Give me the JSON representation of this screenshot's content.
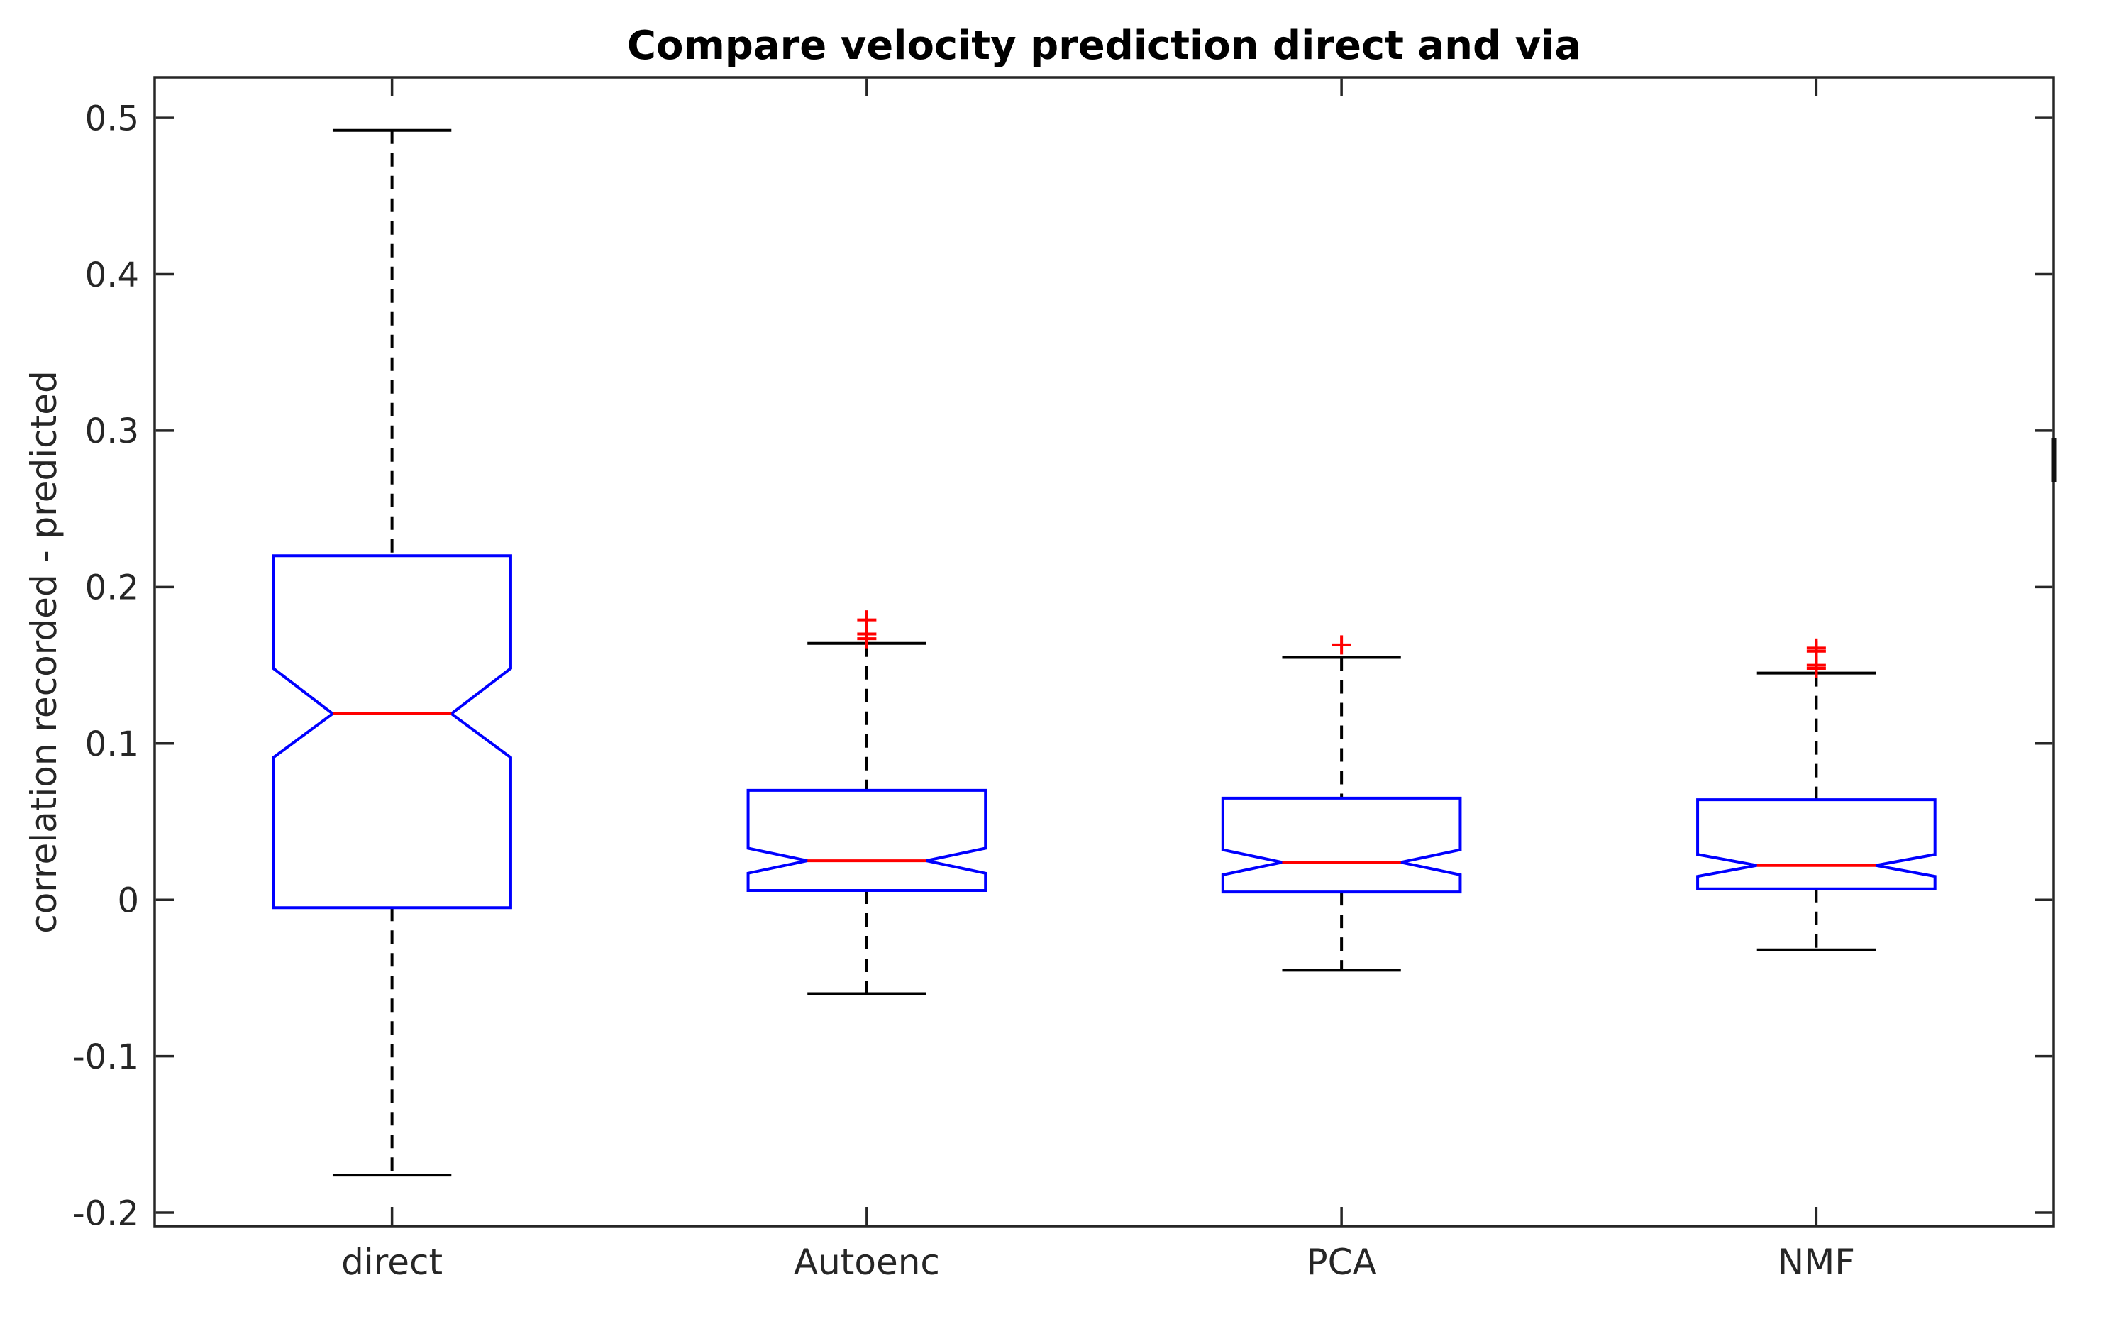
{
  "chart_data": {
    "type": "boxplot",
    "title": "Compare velocity prediction direct and via",
    "ylabel": "correlation recorded - predicted",
    "xlabel": "",
    "notched": true,
    "grid": false,
    "categories": [
      "direct",
      "Autoenc",
      "PCA",
      "NMF"
    ],
    "y_ticks": [
      -0.2,
      -0.1,
      0,
      0.1,
      0.2,
      0.3,
      0.4,
      0.5
    ],
    "y_tick_labels": [
      "-0.2",
      "-0.1",
      "0",
      "0.1",
      "0.2",
      "0.3",
      "0.4",
      "0.5"
    ],
    "ylim": [
      -0.2086,
      0.5259
    ],
    "xlim": [
      0.5,
      4.5
    ],
    "series": [
      {
        "name": "direct",
        "x": 1,
        "whisker_low": -0.176,
        "q1": -0.005,
        "median": 0.119,
        "q3": 0.22,
        "whisker_high": 0.492,
        "notch_low": 0.091,
        "notch_high": 0.148,
        "outliers": []
      },
      {
        "name": "Autoenc",
        "x": 2,
        "whisker_low": -0.06,
        "q1": 0.006,
        "median": 0.025,
        "q3": 0.07,
        "whisker_high": 0.164,
        "notch_low": 0.017,
        "notch_high": 0.033,
        "outliers": [
          0.179,
          0.17,
          0.167
        ]
      },
      {
        "name": "PCA",
        "x": 3,
        "whisker_low": -0.045,
        "q1": 0.005,
        "median": 0.024,
        "q3": 0.065,
        "whisker_high": 0.155,
        "notch_low": 0.016,
        "notch_high": 0.032,
        "outliers": [
          0.163
        ]
      },
      {
        "name": "NMF",
        "x": 4,
        "whisker_low": -0.032,
        "q1": 0.007,
        "median": 0.022,
        "q3": 0.064,
        "whisker_high": 0.145,
        "notch_low": 0.015,
        "notch_high": 0.029,
        "outliers": [
          0.161,
          0.159,
          0.15,
          0.148
        ]
      }
    ],
    "style": {
      "box_color": "#0000ff",
      "median_color": "#ff0000",
      "outlier_color": "#ff0000",
      "whisker_color": "#000000",
      "axis_color": "#262626",
      "label_color": "#262626",
      "title_color": "#000000",
      "box_half_width": 0.25,
      "notch_half_width": 0.125,
      "cap_half_width": 0.125
    },
    "artifact_marks": [
      {
        "edge": "right",
        "v_from": 0.295,
        "v_to": 0.267
      }
    ]
  }
}
